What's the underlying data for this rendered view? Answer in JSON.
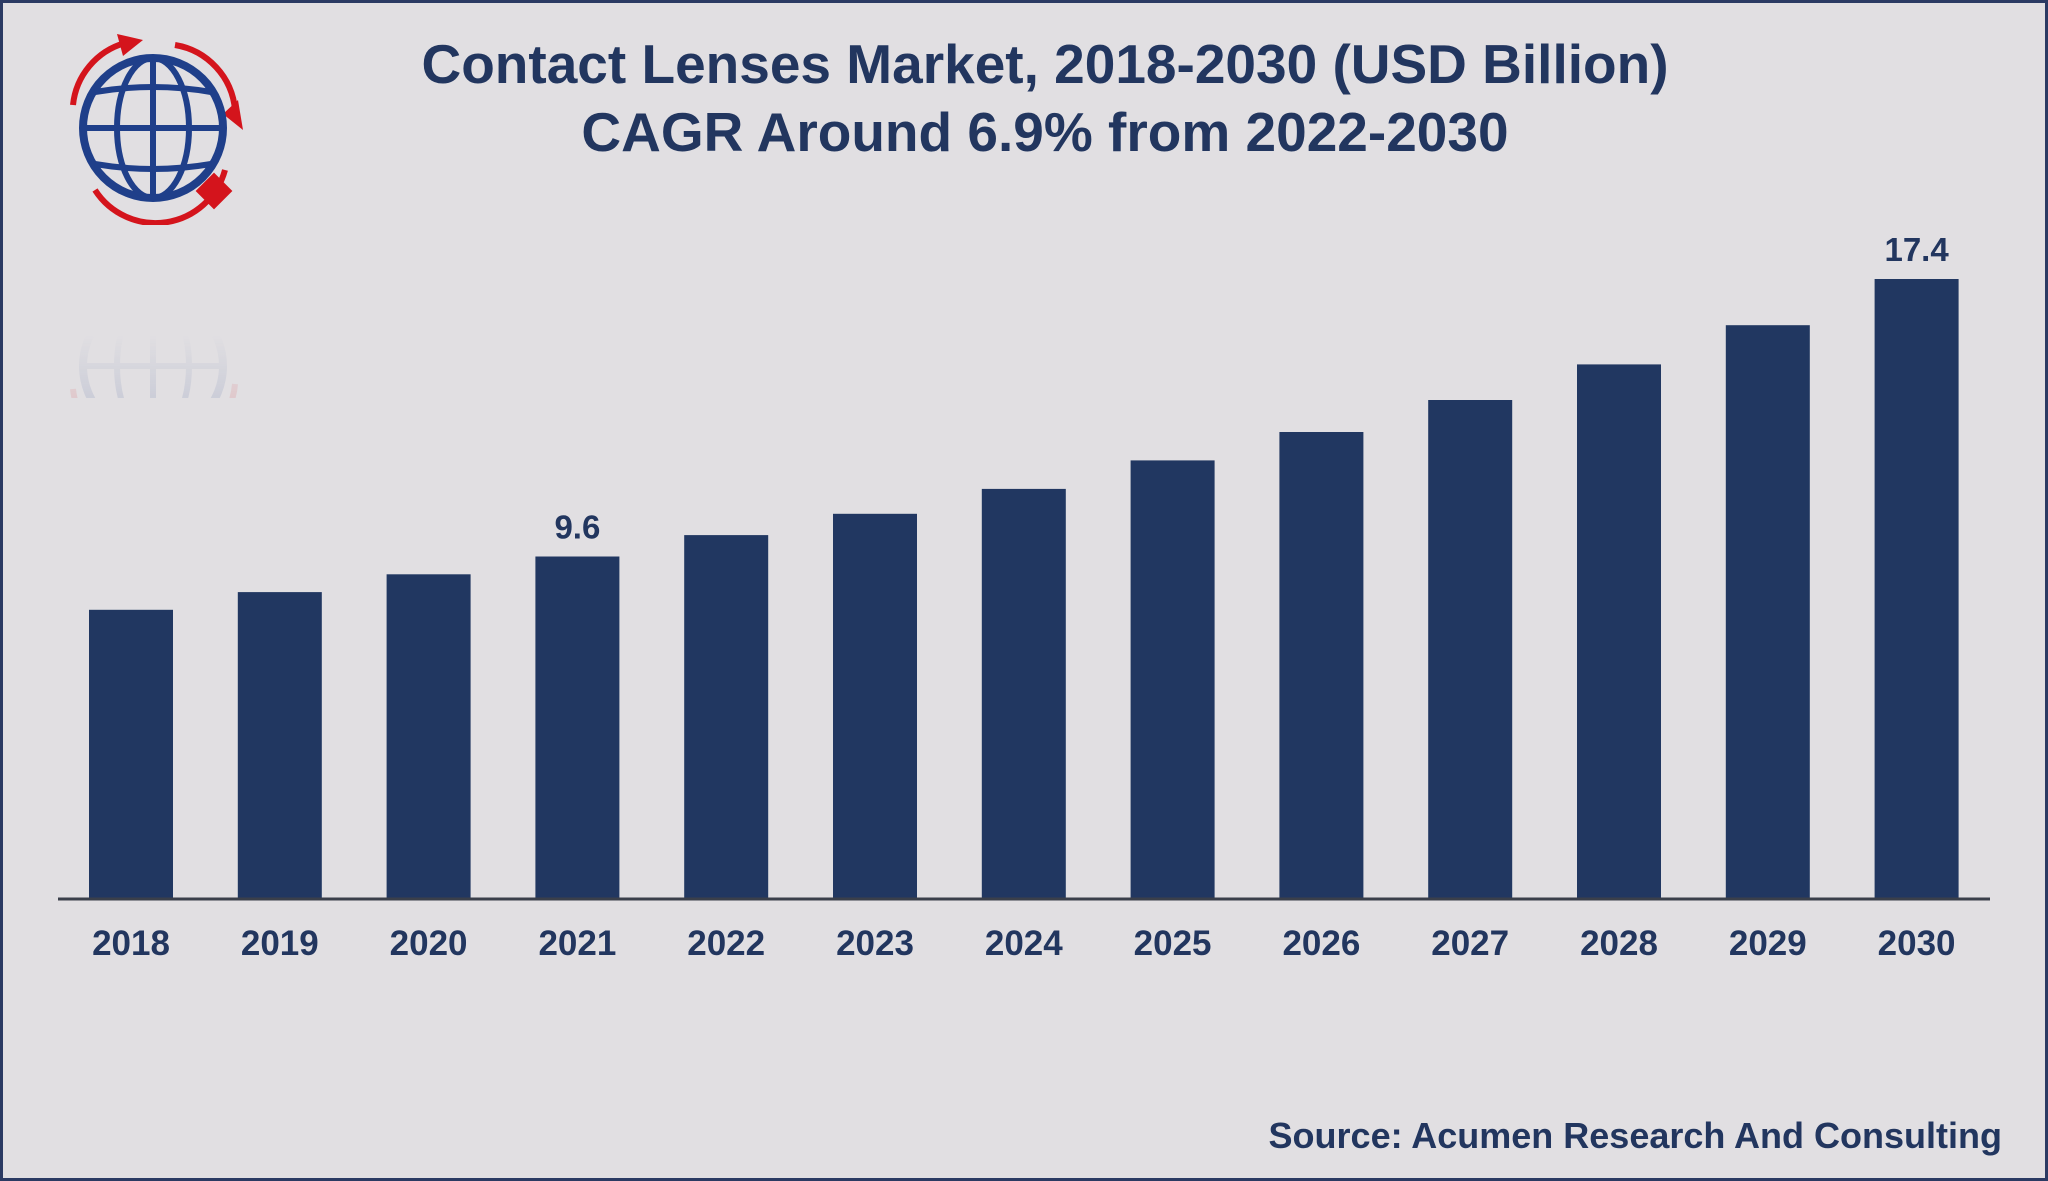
{
  "title_line1": "Contact Lenses Market, 2018-2030 (USD Billion)",
  "title_line2": "CAGR Around 6.9% from 2022-2030",
  "source": "Source: Acumen Research And Consulting",
  "logo_icon": "globe-logo-icon",
  "colors": {
    "bar": "#213761",
    "text": "#22365f",
    "background": "#e1dfe2",
    "axis": "#3a3f4a",
    "logo_blue": "#1f3f8a",
    "logo_red": "#d4141c"
  },
  "chart_data": {
    "type": "bar",
    "title": "Contact Lenses Market, 2018-2030 (USD Billion)",
    "subtitle": "CAGR Around 6.9% from 2022-2030",
    "xlabel": "",
    "ylabel": "",
    "categories": [
      "2018",
      "2019",
      "2020",
      "2021",
      "2022",
      "2023",
      "2024",
      "2025",
      "2026",
      "2027",
      "2028",
      "2029",
      "2030"
    ],
    "values": [
      8.1,
      8.6,
      9.1,
      9.6,
      10.2,
      10.8,
      11.5,
      12.3,
      13.1,
      14.0,
      15.0,
      16.1,
      17.4
    ],
    "data_labels": [
      {
        "category": "2021",
        "text": "9.6"
      },
      {
        "category": "2030",
        "text": "17.4"
      }
    ],
    "ylim": [
      0,
      17.4
    ],
    "grid": false,
    "legend": "none"
  }
}
